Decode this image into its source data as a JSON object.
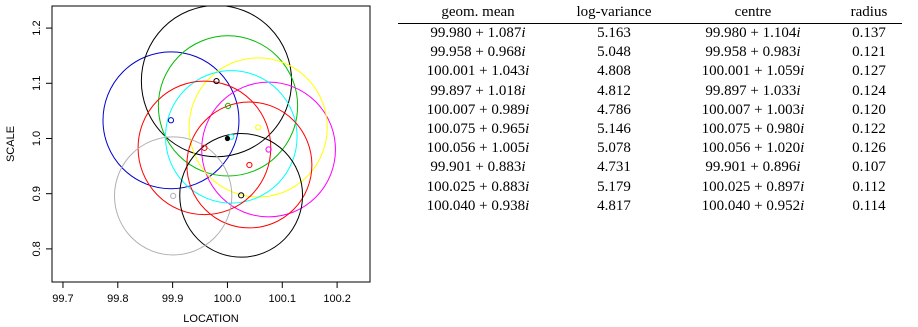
{
  "chart_data": {
    "type": "scatter",
    "xlabel": "LOCATION",
    "ylabel": "SCALE",
    "xlim": [
      99.68,
      100.26
    ],
    "ylim": [
      0.74,
      1.24
    ],
    "x_ticks": [
      99.7,
      99.8,
      99.9,
      100.0,
      100.1,
      100.2
    ],
    "x_tick_labels": [
      "99.7",
      "99.8",
      "99.9",
      "100.0",
      "100.1",
      "100.2"
    ],
    "y_ticks": [
      0.8,
      0.9,
      1.0,
      1.1,
      1.2
    ],
    "y_tick_labels": [
      "0.8",
      "0.9",
      "1.0",
      "1.1",
      "1.2"
    ],
    "grid": false,
    "filled_point": {
      "x": 100.0,
      "y": 1.0
    },
    "series": [
      {
        "color": "#0000cc",
        "center": {
          "x": 99.897,
          "y": 1.033
        },
        "radius": 0.124,
        "point": {
          "x": 99.897,
          "y": 1.033
        }
      },
      {
        "color": "#000000",
        "center": {
          "x": 99.98,
          "y": 1.104
        },
        "radius": 0.137,
        "point": {
          "x": 99.98,
          "y": 1.104
        }
      },
      {
        "color": "#00bb00",
        "center": {
          "x": 100.001,
          "y": 1.059
        },
        "radius": 0.127,
        "point": {
          "x": 100.001,
          "y": 1.059
        }
      },
      {
        "color": "#ff00ff",
        "center": {
          "x": 100.075,
          "y": 0.98
        },
        "radius": 0.122,
        "point": {
          "x": 100.075,
          "y": 0.98
        }
      },
      {
        "color": "#ffff00",
        "center": {
          "x": 100.056,
          "y": 1.02
        },
        "radius": 0.126,
        "point": {
          "x": 100.056,
          "y": 1.02
        }
      },
      {
        "color": "#00ffff",
        "center": {
          "x": 100.007,
          "y": 1.003
        },
        "radius": 0.12,
        "point": {
          "x": 100.007,
          "y": 1.003
        }
      },
      {
        "color": "#ff0000",
        "center": {
          "x": 99.958,
          "y": 0.983
        },
        "radius": 0.121,
        "point": {
          "x": 99.958,
          "y": 0.983
        }
      },
      {
        "color": "#ff0000",
        "center": {
          "x": 100.04,
          "y": 0.952
        },
        "radius": 0.114,
        "point": {
          "x": 100.04,
          "y": 0.952
        }
      },
      {
        "color": "#000000",
        "center": {
          "x": 100.025,
          "y": 0.897
        },
        "radius": 0.112,
        "point": {
          "x": 100.025,
          "y": 0.897
        }
      },
      {
        "color": "#b0b0b0",
        "center": {
          "x": 99.901,
          "y": 0.896
        },
        "radius": 0.107,
        "point": {
          "x": 99.901,
          "y": 0.896
        }
      }
    ]
  },
  "table": {
    "headers": [
      "geom. mean",
      "log-variance",
      "centre",
      "radius"
    ],
    "rows": [
      {
        "geom_real": "99.980 + 1.087",
        "logvar": "5.163",
        "centre_real": "99.980 + 1.104",
        "radius": "0.137"
      },
      {
        "geom_real": "99.958 + 0.968",
        "logvar": "5.048",
        "centre_real": "99.958 + 0.983",
        "radius": "0.121"
      },
      {
        "geom_real": "100.001 + 1.043",
        "logvar": "4.808",
        "centre_real": "100.001 + 1.059",
        "radius": "0.127"
      },
      {
        "geom_real": "99.897 + 1.018",
        "logvar": "4.812",
        "centre_real": "99.897 + 1.033",
        "radius": "0.124"
      },
      {
        "geom_real": "100.007 + 0.989",
        "logvar": "4.786",
        "centre_real": "100.007 + 1.003",
        "radius": "0.120"
      },
      {
        "geom_real": "100.075 + 0.965",
        "logvar": "5.146",
        "centre_real": "100.075 + 0.980",
        "radius": "0.122"
      },
      {
        "geom_real": "100.056 + 1.005",
        "logvar": "5.078",
        "centre_real": "100.056 + 1.020",
        "radius": "0.126"
      },
      {
        "geom_real": "99.901 + 0.883",
        "logvar": "4.731",
        "centre_real": "99.901 + 0.896",
        "radius": "0.107"
      },
      {
        "geom_real": "100.025 + 0.883",
        "logvar": "5.179",
        "centre_real": "100.025 + 0.897",
        "radius": "0.112"
      },
      {
        "geom_real": "100.040 + 0.938",
        "logvar": "4.817",
        "centre_real": "100.040 + 0.952",
        "radius": "0.114"
      }
    ],
    "imaginary_unit": "i"
  }
}
